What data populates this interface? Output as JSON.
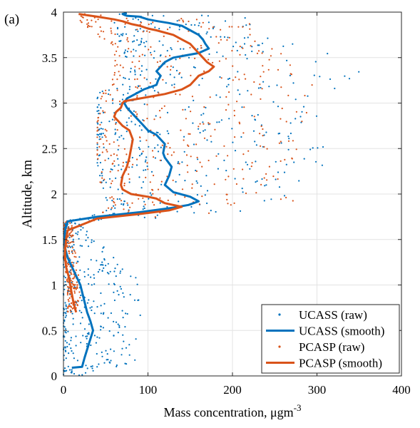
{
  "panel_label": "(a)",
  "chart_data": {
    "type": "scatter",
    "xlabel": "Mass concentration, μgm",
    "xlabel_sup": "-3",
    "ylabel": "Altitude, km",
    "xlim": [
      0,
      400
    ],
    "ylim": [
      0,
      4
    ],
    "xticks": [
      0,
      100,
      200,
      300,
      400
    ],
    "yticks": [
      0,
      0.5,
      1,
      1.5,
      2,
      2.5,
      3,
      3.5,
      4
    ],
    "grid": true,
    "legend_position": "bottom-right",
    "colors": {
      "ucass": "#0072BD",
      "pcasp": "#D95319"
    },
    "series": [
      {
        "name": "UCASS (raw)",
        "kind": "points",
        "color": "#0072BD",
        "envelope": [
          [
            0,
            0,
            70
          ],
          [
            0.1,
            0,
            85
          ],
          [
            0.5,
            0,
            90
          ],
          [
            1,
            0,
            95
          ],
          [
            1.5,
            0,
            40
          ],
          [
            1.7,
            0,
            20
          ],
          [
            1.75,
            30,
            180
          ],
          [
            1.85,
            60,
            300
          ],
          [
            1.95,
            50,
            260
          ],
          [
            2.3,
            40,
            320
          ],
          [
            2.7,
            40,
            300
          ],
          [
            3.1,
            40,
            310
          ],
          [
            3.35,
            80,
            360
          ],
          [
            3.6,
            70,
            300
          ],
          [
            3.8,
            60,
            240
          ],
          [
            3.98,
            60,
            220
          ]
        ]
      },
      {
        "name": "UCASS (smooth)",
        "kind": "line",
        "color": "#0072BD",
        "x": [
          10,
          22,
          25,
          30,
          35,
          32,
          28,
          24,
          20,
          15,
          10,
          5,
          2,
          1,
          2,
          3,
          5,
          40,
          90,
          130,
          148,
          160,
          150,
          130,
          120,
          125,
          128,
          120,
          118,
          120,
          115,
          110,
          100,
          95,
          90,
          85,
          80,
          75,
          72,
          75,
          85,
          95,
          110,
          112,
          115,
          110,
          115,
          120,
          130,
          160,
          172,
          168,
          165,
          160,
          150,
          140,
          125,
          112,
          100,
          90,
          75,
          72,
          70,
          75
        ],
        "y": [
          0.09,
          0.1,
          0.2,
          0.35,
          0.5,
          0.6,
          0.7,
          0.85,
          1.0,
          1.1,
          1.2,
          1.3,
          1.4,
          1.5,
          1.6,
          1.65,
          1.7,
          1.75,
          1.8,
          1.85,
          1.88,
          1.92,
          1.97,
          2.02,
          2.1,
          2.2,
          2.3,
          2.4,
          2.45,
          2.55,
          2.6,
          2.65,
          2.7,
          2.75,
          2.8,
          2.85,
          2.9,
          2.95,
          3.0,
          3.05,
          3.1,
          3.15,
          3.2,
          3.25,
          3.3,
          3.35,
          3.4,
          3.45,
          3.5,
          3.55,
          3.6,
          3.65,
          3.7,
          3.75,
          3.8,
          3.85,
          3.88,
          3.9,
          3.92,
          3.95,
          3.96,
          3.97,
          3.98,
          3.99
        ]
      },
      {
        "name": "PCASP (raw)",
        "kind": "points",
        "color": "#D95319",
        "envelope": [
          [
            0.7,
            5,
            20
          ],
          [
            1.0,
            5,
            20
          ],
          [
            1.3,
            0,
            15
          ],
          [
            1.7,
            0,
            10
          ],
          [
            1.75,
            40,
            180
          ],
          [
            1.9,
            60,
            290
          ],
          [
            2.1,
            40,
            250
          ],
          [
            2.5,
            40,
            280
          ],
          [
            3.0,
            40,
            290
          ],
          [
            3.3,
            60,
            300
          ],
          [
            3.6,
            60,
            260
          ],
          [
            3.9,
            20,
            220
          ],
          [
            3.98,
            20,
            180
          ]
        ]
      },
      {
        "name": "PCASP (smooth)",
        "kind": "line",
        "color": "#D95319",
        "x": [
          15,
          12,
          10,
          8,
          6,
          3,
          2,
          2,
          3,
          5,
          40,
          90,
          125,
          140,
          120,
          110,
          100,
          80,
          70,
          68,
          70,
          75,
          78,
          80,
          82,
          78,
          70,
          65,
          60,
          62,
          68,
          70,
          72,
          90,
          120,
          140,
          150,
          160,
          172,
          178,
          170,
          165,
          160,
          155,
          150,
          140,
          130,
          110,
          100,
          90,
          80,
          70,
          60,
          40,
          25,
          18
        ],
        "y": [
          0.7,
          0.8,
          0.9,
          1.0,
          1.1,
          1.2,
          1.3,
          1.4,
          1.5,
          1.6,
          1.73,
          1.78,
          1.82,
          1.86,
          1.9,
          1.95,
          1.97,
          2.0,
          2.05,
          2.1,
          2.2,
          2.3,
          2.4,
          2.5,
          2.6,
          2.7,
          2.75,
          2.8,
          2.85,
          2.9,
          2.95,
          3.0,
          3.02,
          3.05,
          3.1,
          3.15,
          3.2,
          3.3,
          3.35,
          3.4,
          3.45,
          3.5,
          3.55,
          3.6,
          3.65,
          3.7,
          3.75,
          3.8,
          3.82,
          3.85,
          3.87,
          3.9,
          3.92,
          3.95,
          3.97,
          3.98
        ]
      }
    ]
  }
}
